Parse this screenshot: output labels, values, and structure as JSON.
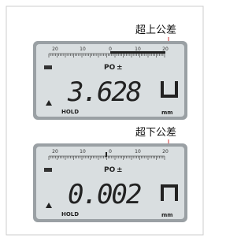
{
  "panels": [
    {
      "label": "超上公差",
      "scale": [
        "20",
        "10",
        "0",
        "10",
        "20"
      ],
      "mode": "PO",
      "reading": "3.628",
      "flag": "HOLD",
      "unit": "mm"
    },
    {
      "label": "超下公差",
      "scale": [
        "20",
        "10",
        "0",
        "10",
        "20"
      ],
      "mode": "PO",
      "reading": "0.002",
      "flag": "HOLD",
      "unit": "mm"
    }
  ]
}
